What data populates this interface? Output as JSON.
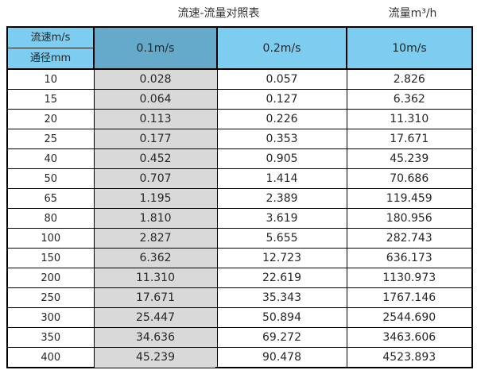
{
  "page": {
    "title_left": "流速-流量对照表",
    "title_right": "流量m³/h"
  },
  "colors": {
    "header_light_blue": "#7CCDF0",
    "header_dark_blue": "#65AACB",
    "highlight_gray": "#D9D9D9",
    "border_black": "#000000"
  },
  "table": {
    "corner": {
      "top": "流速m/s",
      "bottom": "通径mm"
    },
    "columns": [
      "0.1m/s",
      "0.2m/s",
      "10m/s"
    ],
    "rows": [
      {
        "diameter": "10",
        "v01": "0.028",
        "v02": "0.057",
        "v10": "2.826"
      },
      {
        "diameter": "15",
        "v01": "0.064",
        "v02": "0.127",
        "v10": "6.362"
      },
      {
        "diameter": "20",
        "v01": "0.113",
        "v02": "0.226",
        "v10": "11.310"
      },
      {
        "diameter": "25",
        "v01": "0.177",
        "v02": "0.353",
        "v10": "17.671"
      },
      {
        "diameter": "40",
        "v01": "0.452",
        "v02": "0.905",
        "v10": "45.239"
      },
      {
        "diameter": "50",
        "v01": "0.707",
        "v02": "1.414",
        "v10": "70.686"
      },
      {
        "diameter": "65",
        "v01": "1.195",
        "v02": "2.389",
        "v10": "119.459"
      },
      {
        "diameter": "80",
        "v01": "1.810",
        "v02": "3.619",
        "v10": "180.956"
      },
      {
        "diameter": "100",
        "v01": "2.827",
        "v02": "5.655",
        "v10": "282.743"
      },
      {
        "diameter": "150",
        "v01": "6.362",
        "v02": "12.723",
        "v10": "636.173"
      },
      {
        "diameter": "200",
        "v01": "11.310",
        "v02": "22.619",
        "v10": "1130.973"
      },
      {
        "diameter": "250",
        "v01": "17.671",
        "v02": "35.343",
        "v10": "1767.146"
      },
      {
        "diameter": "300",
        "v01": "25.447",
        "v02": "50.894",
        "v10": "2544.690"
      },
      {
        "diameter": "350",
        "v01": "34.636",
        "v02": "69.272",
        "v10": "3463.606"
      },
      {
        "diameter": "400",
        "v01": "45.239",
        "v02": "90.478",
        "v10": "4523.893"
      }
    ]
  },
  "chart_data": {
    "type": "table",
    "title": "流速-流量对照表",
    "unit_label": "流量m³/h",
    "row_header_labels": [
      "流速m/s",
      "通径mm"
    ],
    "categories": [
      10,
      15,
      20,
      25,
      40,
      50,
      65,
      80,
      100,
      150,
      200,
      250,
      300,
      350,
      400
    ],
    "series": [
      {
        "name": "0.1m/s",
        "values": [
          0.028,
          0.064,
          0.113,
          0.177,
          0.452,
          0.707,
          1.195,
          1.81,
          2.827,
          6.362,
          11.31,
          17.671,
          25.447,
          34.636,
          45.239
        ]
      },
      {
        "name": "0.2m/s",
        "values": [
          0.057,
          0.127,
          0.226,
          0.353,
          0.905,
          1.414,
          2.389,
          3.619,
          5.655,
          12.723,
          22.619,
          35.343,
          50.894,
          69.272,
          90.478
        ]
      },
      {
        "name": "10m/s",
        "values": [
          2.826,
          6.362,
          11.31,
          17.671,
          45.239,
          70.686,
          119.459,
          180.956,
          282.743,
          636.173,
          1130.973,
          1767.146,
          2544.69,
          3463.606,
          4523.893
        ]
      }
    ],
    "layout": {
      "highlighted_column": "0.1m/s",
      "grid": true,
      "legend": false
    }
  }
}
